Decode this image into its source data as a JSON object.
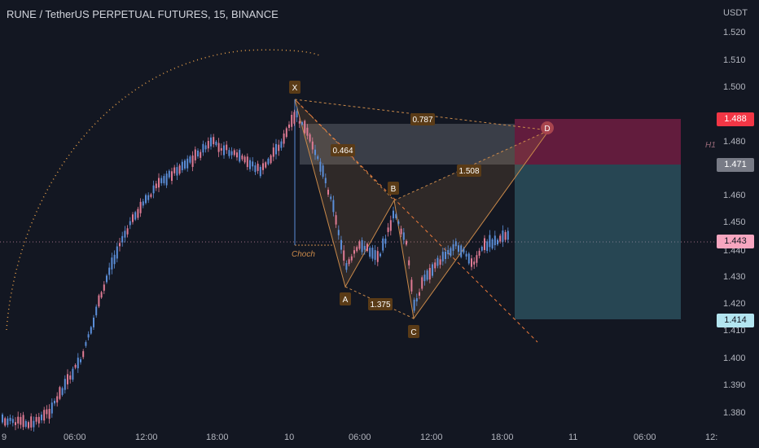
{
  "header": {
    "title": "RUNE / TetherUS PERPETUAL FUTURES, 15, BINANCE"
  },
  "price_axis": {
    "unit": "USDT",
    "ticks": [
      "1.520",
      "1.510",
      "1.500",
      "1.480",
      "1.470",
      "1.460",
      "1.450",
      "1.440",
      "1.430",
      "1.420",
      "1.410",
      "1.400",
      "1.390",
      "1.380"
    ],
    "tags": [
      {
        "value": "1.488",
        "bg": "#f23645",
        "fg": "#ffffff"
      },
      {
        "value": "1.471",
        "bg": "#787b86",
        "fg": "#ffffff"
      },
      {
        "value": "1.443",
        "bg": "#f7a6c0",
        "fg": "#131722"
      },
      {
        "value": "1.414",
        "bg": "#b3e5f0",
        "fg": "#131722"
      }
    ]
  },
  "time_axis": {
    "ticks": [
      "9",
      "06:00",
      "12:00",
      "18:00",
      "10",
      "06:00",
      "12:00",
      "18:00",
      "11",
      "06:00",
      "12:"
    ]
  },
  "pattern": {
    "points": [
      "X",
      "A",
      "B",
      "C",
      "D"
    ],
    "ratios": [
      "0.787",
      "0.464",
      "1.508",
      "1.375"
    ],
    "side_label": "H1",
    "choch_label": "Choch"
  },
  "colors": {
    "background": "#131722",
    "bull": "#5b8ed8",
    "bear": "#e07b94",
    "pattern_line": "#c9894a",
    "stop_zone": "#f7256f",
    "target_zone": "#4e9fb0"
  }
}
